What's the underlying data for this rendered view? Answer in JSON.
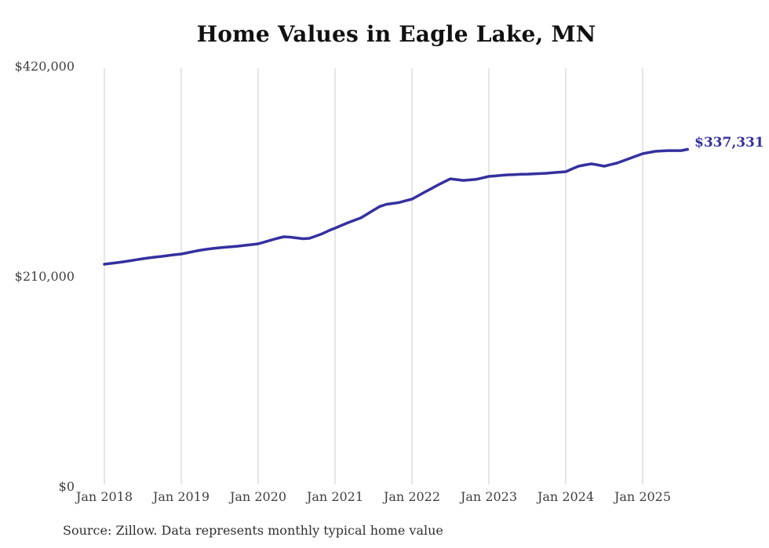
{
  "page": {
    "background": "#ffffff"
  },
  "chart_data": {
    "type": "line",
    "title": "Home Values in Eagle Lake, MN",
    "source": "Source: Zillow. Data represents monthly typical home value",
    "latest_value_label": "$337,331",
    "latest_value": 337331,
    "xlabel": "",
    "ylabel": "",
    "ylim": [
      0,
      420000
    ],
    "grid": "vertical-only",
    "legend": "none",
    "colors": {
      "line": "#35309f",
      "latest_label": "#35309f",
      "grid": "#cccccc",
      "title": "#111111",
      "axis_text": "#3f3f3f",
      "source_text": "#303030",
      "background": "#ffffff"
    },
    "y_ticks": [
      {
        "label": "$420,000",
        "value": 420000
      },
      {
        "label": "$210,000",
        "value": 210000
      },
      {
        "label": "$0",
        "value": 0
      }
    ],
    "x_ticks": [
      "Jan 2018",
      "Jan 2019",
      "Jan 2020",
      "Jan 2021",
      "Jan 2022",
      "Jan 2023",
      "Jan 2024",
      "Jan 2025"
    ],
    "x": [
      "2018-01",
      "2018-02",
      "2018-03",
      "2018-04",
      "2018-05",
      "2018-06",
      "2018-07",
      "2018-08",
      "2018-09",
      "2018-10",
      "2018-11",
      "2018-12",
      "2019-01",
      "2019-02",
      "2019-03",
      "2019-04",
      "2019-05",
      "2019-06",
      "2019-07",
      "2019-08",
      "2019-09",
      "2019-10",
      "2019-11",
      "2019-12",
      "2020-01",
      "2020-02",
      "2020-03",
      "2020-04",
      "2020-05",
      "2020-06",
      "2020-07",
      "2020-08",
      "2020-09",
      "2020-10",
      "2020-11",
      "2020-12",
      "2021-01",
      "2021-02",
      "2021-03",
      "2021-04",
      "2021-05",
      "2021-06",
      "2021-07",
      "2021-08",
      "2021-09",
      "2021-10",
      "2021-11",
      "2021-12",
      "2022-01",
      "2022-02",
      "2022-03",
      "2022-04",
      "2022-05",
      "2022-06",
      "2022-07",
      "2022-08",
      "2022-09",
      "2022-10",
      "2022-11",
      "2022-12",
      "2023-01",
      "2023-02",
      "2023-03",
      "2023-04",
      "2023-05",
      "2023-06",
      "2023-07",
      "2023-08",
      "2023-09",
      "2023-10",
      "2023-11",
      "2023-12",
      "2024-01",
      "2024-02",
      "2024-03",
      "2024-04",
      "2024-05",
      "2024-06",
      "2024-07",
      "2024-08",
      "2024-09",
      "2024-10",
      "2024-11",
      "2024-12",
      "2025-01",
      "2025-02",
      "2025-03",
      "2025-04",
      "2025-05",
      "2025-06",
      "2025-07",
      "2025-08"
    ],
    "values": [
      222500,
      223300,
      224100,
      225000,
      226000,
      227000,
      228000,
      228900,
      229700,
      230400,
      231200,
      232000,
      232700,
      234000,
      235300,
      236600,
      237500,
      238300,
      239000,
      239600,
      240100,
      240600,
      241400,
      242100,
      242900,
      244700,
      246600,
      248400,
      250000,
      249600,
      248800,
      248000,
      248400,
      250700,
      253000,
      256000,
      258600,
      261300,
      264000,
      266400,
      268800,
      272600,
      276500,
      280300,
      282400,
      283300,
      284200,
      285900,
      287600,
      291100,
      294600,
      298000,
      301500,
      304700,
      307900,
      307100,
      306300,
      306800,
      307300,
      308800,
      310300,
      310800,
      311400,
      311900,
      312100,
      312400,
      312600,
      312900,
      313100,
      313400,
      314000,
      314500,
      315000,
      317800,
      320500,
      321700,
      322800,
      321700,
      320500,
      322100,
      323600,
      326000,
      328300,
      330700,
      333000,
      334200,
      335400,
      335800,
      336100,
      336100,
      336100,
      337331
    ]
  }
}
